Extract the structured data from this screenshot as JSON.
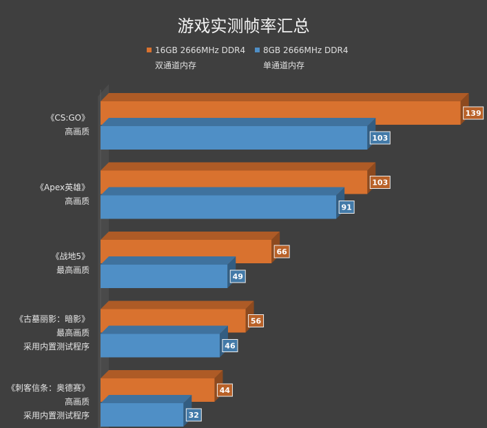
{
  "chart_data": {
    "type": "bar",
    "orientation": "horizontal",
    "style": "3d",
    "title": "游戏实测帧率汇总",
    "categories": [
      [
        "《CS:GO》",
        "高画质"
      ],
      [
        "《Apex英雄》",
        "高画质"
      ],
      [
        "《战地5》",
        "最高画质"
      ],
      [
        "《古墓丽影：暗影》",
        "最高画质",
        "采用内置测试程序"
      ],
      [
        "《刺客信条：奥德赛》",
        "高画质",
        "采用内置测试程序"
      ]
    ],
    "series": [
      {
        "name": "16GB 2666MHz DDR4",
        "subname": "双通道内存",
        "color": "#d9722f",
        "values": [
          139,
          103,
          66,
          56,
          44
        ]
      },
      {
        "name": "8GB 2666MHz DDR4",
        "subname": "单通道内存",
        "color": "#4f8fc6",
        "values": [
          103,
          91,
          49,
          46,
          32
        ]
      }
    ],
    "xlim": [
      0,
      140
    ],
    "legend_position": "top",
    "grid": false,
    "data_labels": true
  }
}
